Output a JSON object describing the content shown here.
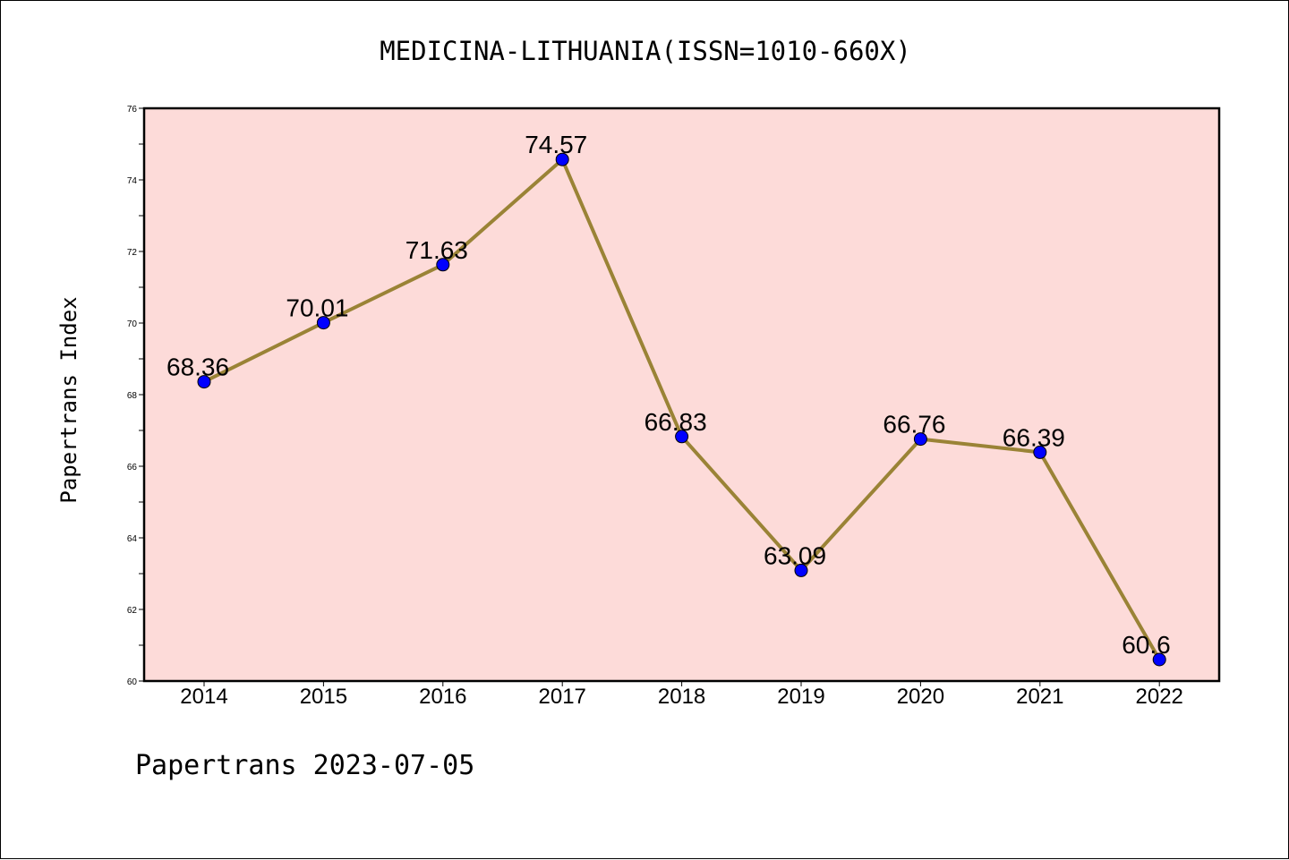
{
  "title": "MEDICINA-LITHUANIA(ISSN=1010-660X)",
  "footer": "Papertrans 2023-07-05",
  "colors": {
    "plot_background": "#fddbd9",
    "line": "#9a8336",
    "marker": "#0000ff"
  },
  "chart_data": {
    "type": "line",
    "title": "MEDICINA-LITHUANIA(ISSN=1010-660X)",
    "xlabel": "",
    "ylabel": "Papertrans Index",
    "x": [
      "2014",
      "2015",
      "2016",
      "2017",
      "2018",
      "2019",
      "2020",
      "2021",
      "2022"
    ],
    "values": [
      68.36,
      70.01,
      71.63,
      74.57,
      66.83,
      63.09,
      66.76,
      66.39,
      60.6
    ],
    "data_labels": [
      "68.36",
      "70.01",
      "71.63",
      "74.57",
      "66.83",
      "63.09",
      "66.76",
      "66.39",
      "60.6"
    ],
    "ylim": [
      60,
      76
    ],
    "yticks": [
      "60",
      "62",
      "64",
      "66",
      "68",
      "70",
      "72",
      "74",
      "76"
    ],
    "grid": false,
    "legend": "none"
  }
}
